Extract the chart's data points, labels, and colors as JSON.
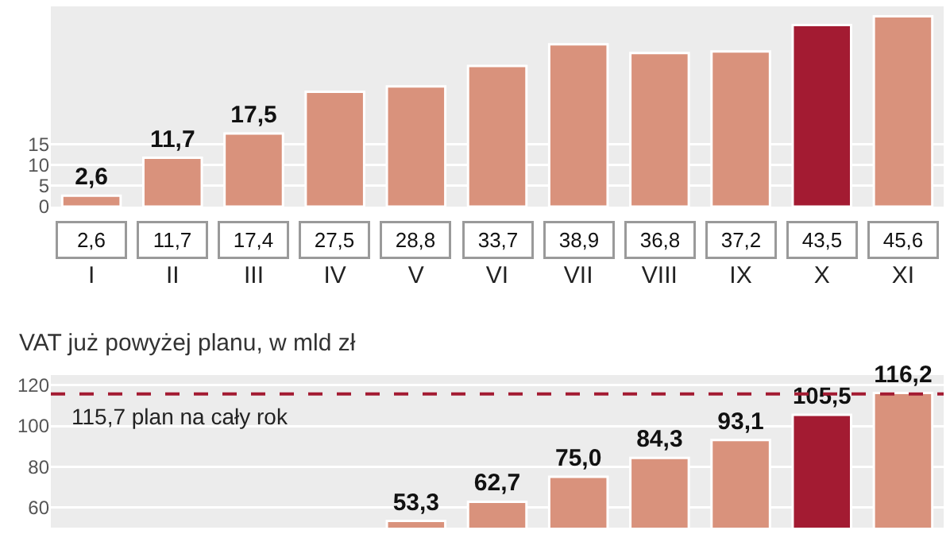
{
  "chart_data": [
    {
      "type": "bar",
      "categories": [
        "I",
        "II",
        "III",
        "IV",
        "V",
        "VI",
        "VII",
        "VIII",
        "IX",
        "X",
        "XI"
      ],
      "values": [
        2.6,
        11.7,
        17.5,
        27.5,
        28.8,
        33.7,
        38.9,
        36.8,
        37.2,
        43.5,
        45.6
      ],
      "value_labels": [
        "2,6",
        "11,7",
        "17,5",
        null,
        null,
        null,
        null,
        null,
        null,
        null,
        null
      ],
      "colors": [
        "#d9927c",
        "#d9927c",
        "#d9927c",
        "#d9927c",
        "#d9927c",
        "#d9927c",
        "#d9927c",
        "#d9927c",
        "#d9927c",
        "#a31b32",
        "#d9927c"
      ],
      "ylim": [
        0,
        48
      ],
      "yticks": [
        0,
        5,
        10,
        15
      ],
      "grid": "y",
      "annotations": [
        "2,6",
        "11,7",
        "17,4",
        "27,5",
        "28,8",
        "33,7",
        "38,9",
        "36,8",
        "37,2",
        "43,5",
        "45,6"
      ]
    },
    {
      "type": "bar",
      "title": "VAT już powyżej planu, w mld zł",
      "categories": [
        null,
        null,
        null,
        null,
        null,
        null,
        null,
        null,
        null,
        null,
        null
      ],
      "values": [
        null,
        null,
        null,
        null,
        53.3,
        62.7,
        75.0,
        84.3,
        93.1,
        105.5,
        116.2
      ],
      "value_labels": [
        null,
        null,
        null,
        null,
        "53,3",
        "62,7",
        "75,0",
        "84,3",
        "93,1",
        "105,5",
        "116,2"
      ],
      "colors": [
        "#d9927c",
        "#d9927c",
        "#d9927c",
        "#d9927c",
        "#d9927c",
        "#d9927c",
        "#d9927c",
        "#d9927c",
        "#d9927c",
        "#a31b32",
        "#d9927c"
      ],
      "ylim": [
        50,
        125
      ],
      "yticks": [
        60,
        80,
        100,
        120
      ],
      "grid": "y",
      "tick_labels": "y",
      "ref_lines": [
        {
          "axis": "y",
          "value": 115.7,
          "label": "115,7 plan na cały rok",
          "color": "#a31b32",
          "line_style": "dashed"
        }
      ]
    }
  ]
}
